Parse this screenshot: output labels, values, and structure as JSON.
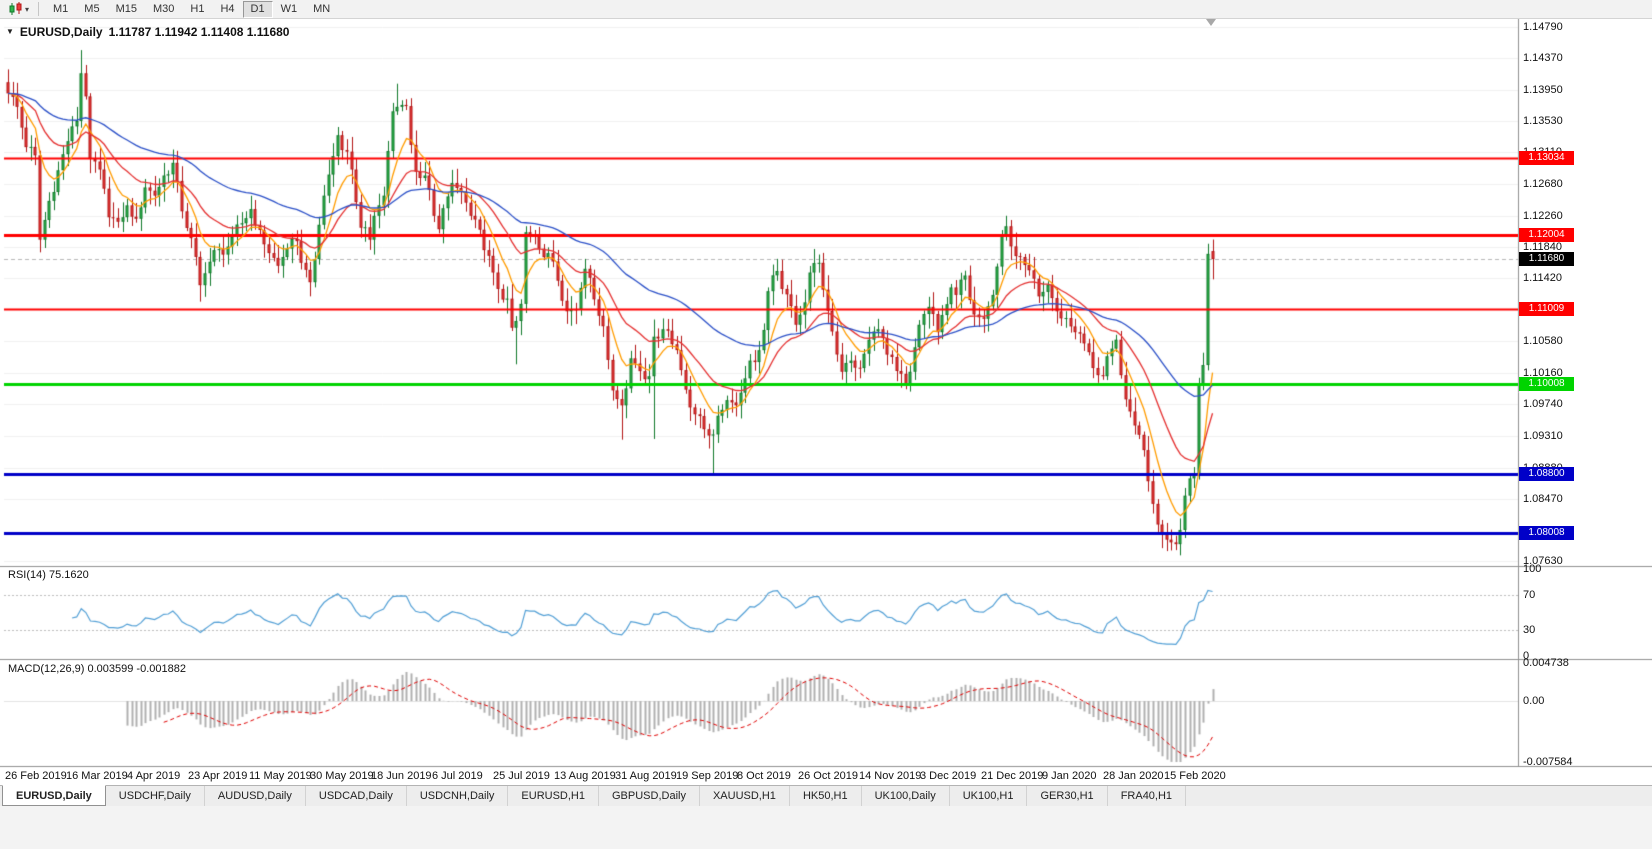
{
  "toolbar": {
    "chart_type_icon": "candlestick-chart-icon",
    "dropdown_icon": "chevron-down-icon",
    "timeframes": [
      "M1",
      "M5",
      "M15",
      "M30",
      "H1",
      "H4",
      "D1",
      "W1",
      "MN"
    ],
    "active_timeframe": "D1"
  },
  "chart": {
    "symbol": "EURUSD,Daily",
    "ohlc": "1.11787 1.11942 1.11408 1.11680"
  },
  "price_axis": {
    "ticks": [
      "1.14790",
      "1.14370",
      "1.13950",
      "1.13530",
      "1.13110",
      "1.12680",
      "1.12260",
      "1.11840",
      "1.11420",
      "1.10580",
      "1.10160",
      "1.09740",
      "1.09310",
      "1.08880",
      "1.08470",
      "1.07630"
    ],
    "current_price": {
      "label": "1.11680",
      "value": 1.1168,
      "bg": "#000000",
      "fg": "#ffffff"
    }
  },
  "levels": [
    {
      "value": 1.13034,
      "label": "1.13034",
      "color": "#ff0000",
      "width": 2
    },
    {
      "value": 1.12004,
      "label": "1.12004",
      "color": "#ff0000",
      "width": 3
    },
    {
      "value": 1.11009,
      "label": "1.11009",
      "color": "#ff0000",
      "width": 2
    },
    {
      "value": 1.10008,
      "label": "1.10008",
      "color": "#00d400",
      "width": 3
    },
    {
      "value": 1.088,
      "label": "1.08800",
      "color": "#0000c8",
      "width": 3
    },
    {
      "value": 1.08008,
      "label": "1.08008",
      "color": "#0000c8",
      "width": 3
    }
  ],
  "rsi_pane": {
    "label": "RSI(14) 75.1620",
    "axis": [
      "100",
      "70",
      "30",
      "0"
    ],
    "levels": [
      70,
      30
    ],
    "line_color": "#53a0d6"
  },
  "macd_pane": {
    "label": "MACD(12,26,9) 0.003599 -0.001882",
    "axis_max": "0.004738",
    "axis_zero": "0.00",
    "axis_min": "-0.007584",
    "histogram_color": "#b0b0b0",
    "signal_color": "#e00000"
  },
  "date_axis": [
    "26 Feb 2019",
    "16 Mar 2019",
    "4 Apr 2019",
    "23 Apr 2019",
    "11 May 2019",
    "30 May 2019",
    "18 Jun 2019",
    "6 Jul 2019",
    "25 Jul 2019",
    "13 Aug 2019",
    "31 Aug 2019",
    "19 Sep 2019",
    "8 Oct 2019",
    "26 Oct 2019",
    "14 Nov 2019",
    "3 Dec 2019",
    "21 Dec 2019",
    "9 Jan 2020",
    "28 Jan 2020",
    "15 Feb 2020"
  ],
  "tabs": {
    "items": [
      "EURUSD,Daily",
      "USDCHF,Daily",
      "AUDUSD,Daily",
      "USDCAD,Daily",
      "USDCNH,Daily",
      "EURUSD,H1",
      "GBPUSD,Daily",
      "XAUUSD,H1",
      "HK50,H1",
      "UK100,Daily",
      "UK100,H1",
      "GER30,H1",
      "FRA40,H1"
    ],
    "active": "EURUSD,Daily"
  },
  "chart_data": {
    "type": "candlestick",
    "symbol": "EURUSD",
    "timeframe": "Daily",
    "current_bar": {
      "open": 1.11787,
      "high": 1.11942,
      "low": 1.11408,
      "close": 1.1168
    },
    "bar_count": 264,
    "visible_price_range": [
      1.0756,
      1.149
    ],
    "moving_averages": [
      {
        "period": 8,
        "color": "#ff9c00"
      },
      {
        "period": 21,
        "color": "#e53030"
      },
      {
        "period": 55,
        "color": "#2b50c8"
      }
    ],
    "candle_colors": {
      "up_fill": "#2fb44d",
      "up_border": "#117a2b",
      "down_fill": "#ea3b3b",
      "down_border": "#b31515"
    },
    "close_anchors": [
      [
        0,
        1.139
      ],
      [
        2,
        1.1372
      ],
      [
        4,
        1.1318
      ],
      [
        6,
        1.1307
      ],
      [
        7,
        1.1194
      ],
      [
        9,
        1.1246
      ],
      [
        11,
        1.1287
      ],
      [
        13,
        1.1326
      ],
      [
        15,
        1.1353
      ],
      [
        16,
        1.1417
      ],
      [
        17,
        1.1386
      ],
      [
        18,
        1.1302
      ],
      [
        20,
        1.1288
      ],
      [
        22,
        1.1224
      ],
      [
        24,
        1.1218
      ],
      [
        26,
        1.124
      ],
      [
        28,
        1.1222
      ],
      [
        30,
        1.1264
      ],
      [
        32,
        1.1253
      ],
      [
        34,
        1.128
      ],
      [
        36,
        1.1297
      ],
      [
        38,
        1.1232
      ],
      [
        40,
        1.1196
      ],
      [
        42,
        1.1133
      ],
      [
        43,
        1.1149
      ],
      [
        45,
        1.118
      ],
      [
        47,
        1.1174
      ],
      [
        49,
        1.1198
      ],
      [
        51,
        1.1216
      ],
      [
        53,
        1.1235
      ],
      [
        55,
        1.1207
      ],
      [
        57,
        1.1176
      ],
      [
        59,
        1.1159
      ],
      [
        61,
        1.1182
      ],
      [
        63,
        1.1192
      ],
      [
        64,
        1.1163
      ],
      [
        66,
        1.1137
      ],
      [
        67,
        1.1168
      ],
      [
        68,
        1.1214
      ],
      [
        69,
        1.1253
      ],
      [
        71,
        1.1306
      ],
      [
        72,
        1.1334
      ],
      [
        74,
        1.1312
      ],
      [
        75,
        1.1288
      ],
      [
        77,
        1.121
      ],
      [
        79,
        1.1194
      ],
      [
        80,
        1.1226
      ],
      [
        82,
        1.1253
      ],
      [
        84,
        1.1366
      ],
      [
        85,
        1.1372
      ],
      [
        87,
        1.1373
      ],
      [
        88,
        1.1321
      ],
      [
        89,
        1.1285
      ],
      [
        91,
        1.128
      ],
      [
        93,
        1.1226
      ],
      [
        94,
        1.1208
      ],
      [
        96,
        1.1252
      ],
      [
        97,
        1.127
      ],
      [
        99,
        1.1258
      ],
      [
        101,
        1.1226
      ],
      [
        102,
        1.1221
      ],
      [
        104,
        1.118
      ],
      [
        106,
        1.115
      ],
      [
        107,
        1.1128
      ],
      [
        109,
        1.1115
      ],
      [
        110,
        1.1076
      ],
      [
        111,
        1.1085
      ],
      [
        112,
        1.1108
      ],
      [
        113,
        1.1204
      ],
      [
        114,
        1.12
      ],
      [
        116,
        1.1182
      ],
      [
        118,
        1.1176
      ],
      [
        120,
        1.1139
      ],
      [
        122,
        1.1098
      ],
      [
        124,
        1.11
      ],
      [
        126,
        1.1155
      ],
      [
        127,
        1.1143
      ],
      [
        129,
        1.1092
      ],
      [
        130,
        1.1078
      ],
      [
        132,
        1.0992
      ],
      [
        134,
        1.0972
      ],
      [
        136,
        1.1035
      ],
      [
        137,
        1.1028
      ],
      [
        139,
        1.1007
      ],
      [
        140,
        1.1011
      ],
      [
        141,
        1.1064
      ],
      [
        143,
        1.1074
      ],
      [
        144,
        1.1072
      ],
      [
        146,
        1.1046
      ],
      [
        148,
        1.0993
      ],
      [
        150,
        1.096
      ],
      [
        152,
        1.094
      ],
      [
        154,
        1.0933
      ],
      [
        156,
        1.0966
      ],
      [
        157,
        1.0979
      ],
      [
        159,
        1.0972
      ],
      [
        160,
        1.0989
      ],
      [
        162,
        1.1032
      ],
      [
        163,
        1.103
      ],
      [
        165,
        1.1073
      ],
      [
        166,
        1.1125
      ],
      [
        168,
        1.1152
      ],
      [
        169,
        1.1128
      ],
      [
        171,
        1.1105
      ],
      [
        172,
        1.108
      ],
      [
        174,
        1.111
      ],
      [
        175,
        1.115
      ],
      [
        177,
        1.1163
      ],
      [
        178,
        1.1127
      ],
      [
        180,
        1.1071
      ],
      [
        182,
        1.1017
      ],
      [
        184,
        1.1032
      ],
      [
        186,
        1.1022
      ],
      [
        188,
        1.106
      ],
      [
        190,
        1.1074
      ],
      [
        192,
        1.104
      ],
      [
        194,
        1.1018
      ],
      [
        196,
        1.1
      ],
      [
        197,
        1.1017
      ],
      [
        199,
        1.108
      ],
      [
        201,
        1.1104
      ],
      [
        203,
        1.107
      ],
      [
        204,
        1.1093
      ],
      [
        206,
        1.113
      ],
      [
        207,
        1.112
      ],
      [
        209,
        1.1146
      ],
      [
        210,
        1.1113
      ],
      [
        212,
        1.109
      ],
      [
        213,
        1.1088
      ],
      [
        215,
        1.112
      ],
      [
        217,
        1.1199
      ],
      [
        218,
        1.1212
      ],
      [
        220,
        1.1172
      ],
      [
        222,
        1.116
      ],
      [
        223,
        1.1153
      ],
      [
        225,
        1.1118
      ],
      [
        227,
        1.1134
      ],
      [
        229,
        1.1098
      ],
      [
        231,
        1.1089
      ],
      [
        233,
        1.107
      ],
      [
        235,
        1.1055
      ],
      [
        237,
        1.1022
      ],
      [
        239,
        1.1011
      ],
      [
        241,
        1.1048
      ],
      [
        242,
        1.106
      ],
      [
        244,
        1.098
      ],
      [
        246,
        1.0945
      ],
      [
        248,
        1.0912
      ],
      [
        250,
        1.084
      ],
      [
        252,
        1.08
      ],
      [
        253,
        1.0792
      ],
      [
        255,
        1.0786
      ],
      [
        256,
        1.0805
      ],
      [
        257,
        1.0851
      ],
      [
        259,
        1.088
      ],
      [
        260,
        1.1
      ],
      [
        261,
        1.1026
      ],
      [
        262,
        1.1175
      ],
      [
        263,
        1.1168
      ]
    ],
    "wick_overrides": {
      "7": {
        "l": 1.1177
      },
      "16": {
        "h": 1.1448
      },
      "42": {
        "l": 1.1111
      },
      "85": {
        "h": 1.1403
      },
      "111": {
        "l": 1.1027
      },
      "134": {
        "l": 1.0926
      },
      "141": {
        "h": 1.1087,
        "l": 1.0927
      },
      "154": {
        "l": 1.0879
      },
      "250": {
        "l": 1.0827
      },
      "255": {
        "l": 1.0778
      },
      "263": {
        "o": 1.11787,
        "h": 1.11942,
        "l": 1.11408,
        "c": 1.1168
      }
    }
  }
}
